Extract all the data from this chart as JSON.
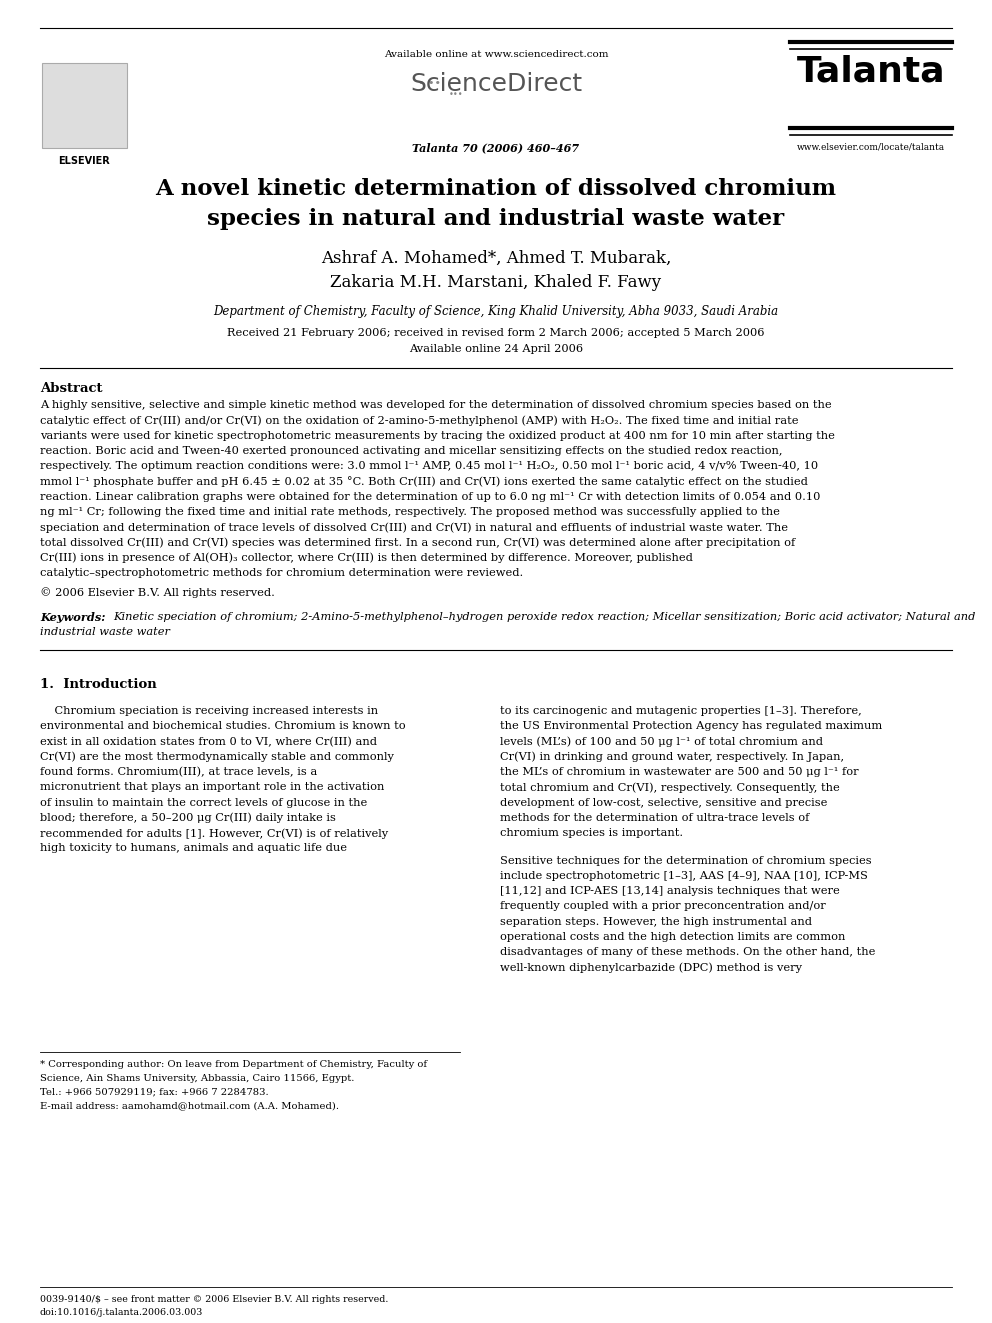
{
  "bg_color": "#ffffff",
  "header": {
    "available_online": "Available online at www.sciencedirect.com",
    "journal_cite": "Talanta 70 (2006) 460–467",
    "journal_name": "Talanta",
    "journal_url": "www.elsevier.com/locate/talanta"
  },
  "title": "A novel kinetic determination of dissolved chromium\nspecies in natural and industrial waste water",
  "authors": "Ashraf A. Mohamed*, Ahmed T. Mubarak,\nZakaria M.H. Marstani, Khaled F. Fawy",
  "affiliation": "Department of Chemistry, Faculty of Science, King Khalid University, Abha 9033, Saudi Arabia",
  "received": "Received 21 February 2006; received in revised form 2 March 2006; accepted 5 March 2006",
  "available": "Available online 24 April 2006",
  "abstract_label": "Abstract",
  "abstract_text": "A highly sensitive, selective and simple kinetic method was developed for the determination of dissolved chromium species based on the catalytic effect of Cr(III) and/or Cr(VI) on the oxidation of 2-amino-5-methylphenol (AMP) with H₂O₂. The fixed time and initial rate variants were used for kinetic spectrophotometric measurements by tracing the oxidized product at 400 nm for 10 min after starting the reaction. Boric acid and Tween-40 exerted pronounced activating and micellar sensitizing effects on the studied redox reaction, respectively. The optimum reaction conditions were: 3.0 mmol l⁻¹ AMP, 0.45 mol l⁻¹ H₂O₂, 0.50 mol l⁻¹ boric acid, 4 v/v% Tween-40, 10 mmol l⁻¹ phosphate buffer and pH 6.45 ± 0.02 at 35 °C. Both Cr(III) and Cr(VI) ions exerted the same catalytic effect on the studied reaction. Linear calibration graphs were obtained for the determination of up to 6.0 ng ml⁻¹ Cr with detection limits of 0.054 and 0.10 ng ml⁻¹ Cr; following the fixed time and initial rate methods, respectively. The proposed method was successfully applied to the speciation and determination of trace levels of dissolved Cr(III) and Cr(VI) in natural and effluents of industrial waste water. The total dissolved Cr(III) and Cr(VI) species was determined first. In a second run, Cr(VI) was determined alone after precipitation of Cr(III) ions in presence of Al(OH)₃ collector, where Cr(III) is then determined by difference. Moreover, published catalytic–spectrophotometric methods for chromium determination were reviewed.",
  "copyright": "© 2006 Elsevier B.V. All rights reserved.",
  "keywords_label": "Keywords:",
  "keywords_text_1": "Kinetic speciation of chromium; 2-Amino-5-methylphenol–hydrogen peroxide redox reaction; Micellar sensitization; Boric acid activator; Natural and",
  "keywords_text_2": "industrial waste water",
  "section1_title": "1.  Introduction",
  "intro_left": "    Chromium speciation is receiving increased interests in environmental and biochemical studies. Chromium is known to exist in all oxidation states from 0 to VI, where Cr(III) and Cr(VI) are the most thermodynamically stable and commonly found forms. Chromium(III), at trace levels, is a micronutrient that plays an important role in the activation of insulin to maintain the correct levels of glucose in the blood; therefore, a 50–200 μg Cr(III) daily intake is recommended for adults [1]. However, Cr(VI) is of relatively high toxicity to humans, animals and aquatic life due",
  "intro_right": "to its carcinogenic and mutagenic properties [1–3]. Therefore, the US Environmental Protection Agency has regulated maximum levels (ML’s) of 100 and 50 μg l⁻¹ of total chromium and Cr(VI) in drinking and ground water, respectively. In Japan, the ML’s of chromium in wastewater are 500 and 50 μg l⁻¹ for total chromium and Cr(VI), respectively. Consequently, the development of low-cost, selective, sensitive and precise methods for the determination of ultra-trace levels of chromium species is important.\n    Sensitive techniques for the determination of chromium species include spectrophotometric [1–3], AAS [4–9], NAA [10], ICP-MS [11,12] and ICP-AES [13,14] analysis techniques that were frequently coupled with a prior preconcentration and/or separation steps. However, the high instrumental and operational costs and the high detection limits are common disadvantages of many of these methods. On the other hand, the well-known diphenylcarbazide (DPC) method is very",
  "footnote1_line1": "* Corresponding author: On leave from Department of Chemistry, Faculty of",
  "footnote1_line2": "Science, Ain Shams University, Abbassia, Cairo 11566, Egypt.",
  "footnote1_line3": "Tel.: +966 507929119; fax: +966 7 2284783.",
  "footnote1_line4": "E-mail address: aamohamd@hotmail.com (A.A. Mohamed).",
  "footnote2": "0039-9140/$ – see front matter © 2006 Elsevier B.V. All rights reserved.",
  "footnote3": "doi:10.1016/j.talanta.2006.03.003"
}
